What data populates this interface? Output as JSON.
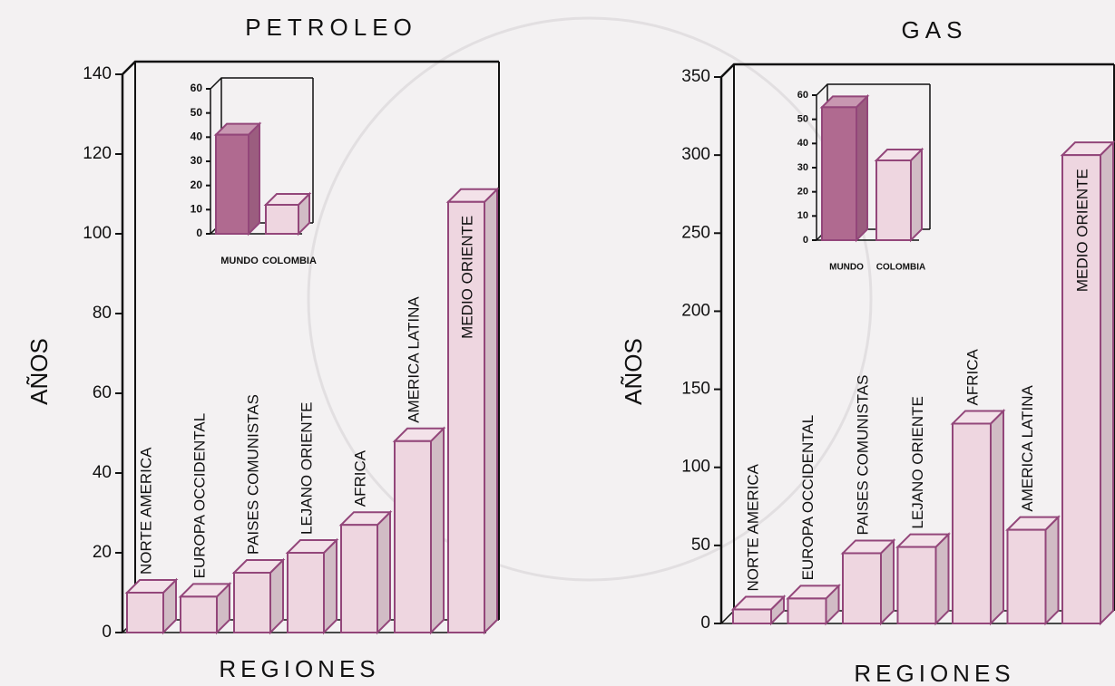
{
  "chart_data": [
    {
      "type": "bar",
      "title": "PETROLEO",
      "x_label": "REGIONES",
      "y_label": "AÑOS",
      "categories": [
        "NORTE AMERICA",
        "EUROPA OCCIDENTAL",
        "PAISES COMUNISTAS",
        "LEJANO ORIENTE",
        "AFRICA",
        "AMERICA LATINA",
        "MEDIO ORIENTE"
      ],
      "values": [
        10,
        9,
        15,
        20,
        27,
        48,
        108
      ],
      "ylim": [
        0,
        140
      ],
      "yticks": [
        0,
        20,
        40,
        60,
        80,
        100,
        120,
        140
      ],
      "color": "#eed6e0",
      "edge_color": "#93467a"
    },
    {
      "type": "bar",
      "categories": [
        "MUNDO",
        "COLOMBIA"
      ],
      "values": [
        41,
        12
      ],
      "ylim": [
        0,
        60
      ],
      "yticks": [
        0,
        10,
        20,
        30,
        40,
        50,
        60
      ],
      "colors": [
        "#b06a90",
        "#eed6e0"
      ],
      "edge_color": "#93467a"
    },
    {
      "type": "bar",
      "title": "GAS",
      "x_label": "REGIONES",
      "y_label": "AÑOS",
      "categories": [
        "NORTE AMERICA",
        "EUROPA OCCIDENTAL",
        "PAISES COMUNISTAS",
        "LEJANO ORIENTE",
        "AFRICA",
        "AMERICA LATINA",
        "MEDIO ORIENTE"
      ],
      "values": [
        9,
        16,
        45,
        49,
        128,
        60,
        300
      ],
      "ylim": [
        0,
        350
      ],
      "yticks": [
        0,
        50,
        100,
        150,
        200,
        250,
        300,
        350
      ],
      "color": "#eed6e0",
      "edge_color": "#93467a"
    },
    {
      "type": "bar",
      "categories": [
        "MUNDO",
        "COLOMBIA"
      ],
      "values": [
        55,
        33
      ],
      "ylim": [
        0,
        60
      ],
      "yticks": [
        0,
        10,
        20,
        30,
        40,
        50,
        60
      ],
      "colors": [
        "#b06a90",
        "#eed6e0"
      ],
      "edge_color": "#93467a"
    }
  ]
}
